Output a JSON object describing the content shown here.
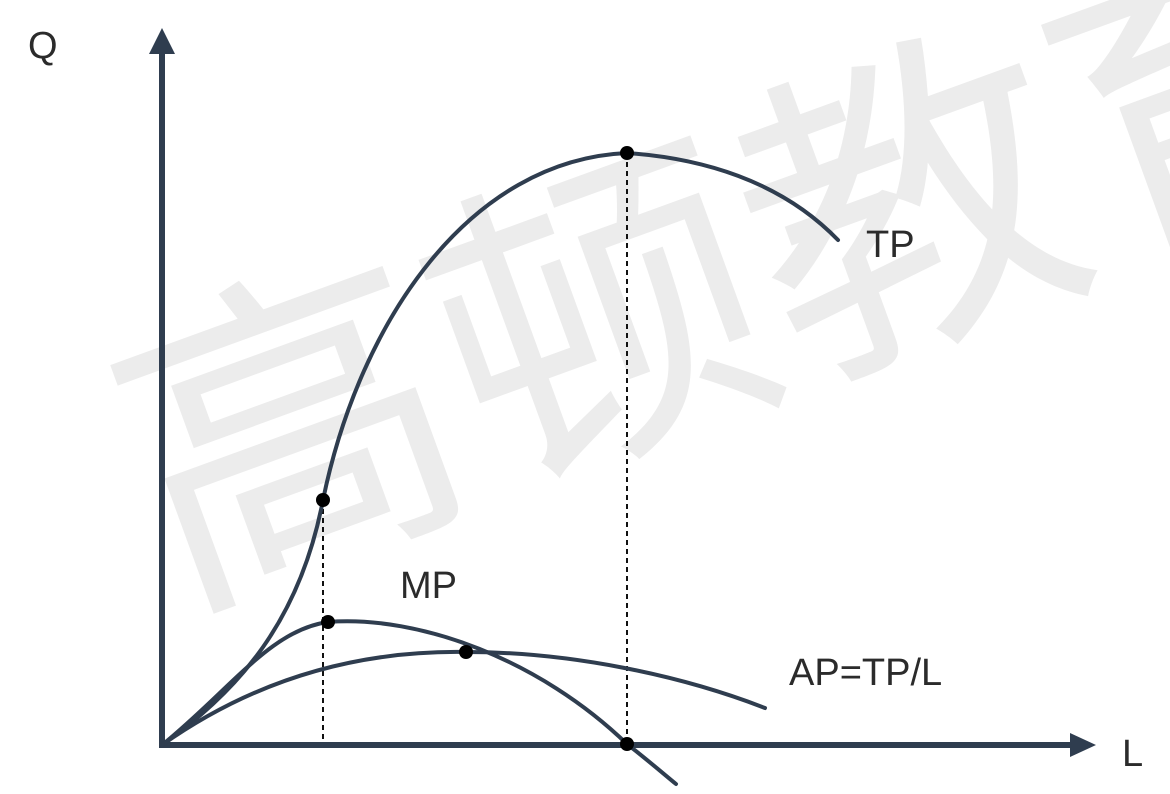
{
  "diagram": {
    "axes": {
      "y_label": "Q",
      "x_label": "L"
    },
    "curves": [
      {
        "id": "tp",
        "label": "TP"
      },
      {
        "id": "mp",
        "label": "MP"
      },
      {
        "id": "ap",
        "label": "AP=TP/L"
      }
    ],
    "marked_points": [
      {
        "id": "tp-inflection",
        "on": "TP"
      },
      {
        "id": "mp-max",
        "on": "MP"
      },
      {
        "id": "ap-max",
        "on": "AP=TP/L"
      },
      {
        "id": "tp-max",
        "on": "TP"
      },
      {
        "id": "mp-zero",
        "on": "MP"
      }
    ],
    "guides": [
      {
        "id": "inflection-to-axis",
        "style": "dashed"
      },
      {
        "id": "tp-max-to-axis",
        "style": "dashed"
      }
    ],
    "watermark": "高顿教育",
    "colors": {
      "curve": "#2f3d4f",
      "points": "#000000",
      "text": "#2b2b2b",
      "watermark": "#ececec"
    }
  }
}
